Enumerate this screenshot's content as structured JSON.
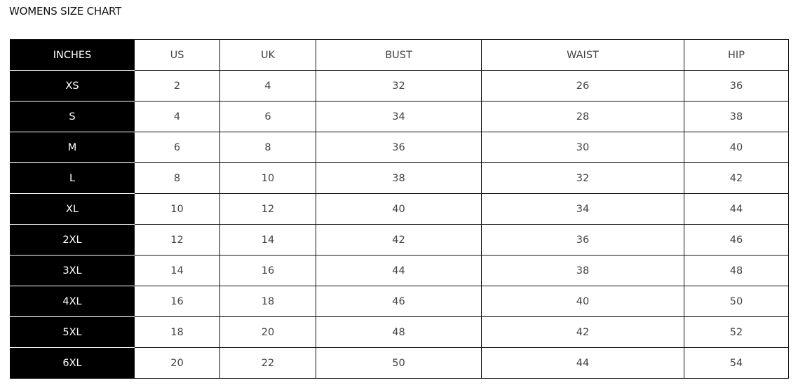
{
  "title": "WOMENS SIZE CHART",
  "table": {
    "headers": [
      "INCHES",
      "US",
      "UK",
      "BUST",
      "WAIST",
      "HIP"
    ],
    "rows": [
      [
        "XS",
        "2",
        "4",
        "32",
        "26",
        "36"
      ],
      [
        "S",
        "4",
        "6",
        "34",
        "28",
        "38"
      ],
      [
        "M",
        "6",
        "8",
        "36",
        "30",
        "40"
      ],
      [
        "L",
        "8",
        "10",
        "38",
        "32",
        "42"
      ],
      [
        "XL",
        "10",
        "12",
        "40",
        "34",
        "44"
      ],
      [
        "2XL",
        "12",
        "14",
        "42",
        "36",
        "46"
      ],
      [
        "3XL",
        "14",
        "16",
        "44",
        "38",
        "48"
      ],
      [
        "4XL",
        "16",
        "18",
        "46",
        "40",
        "50"
      ],
      [
        "5XL",
        "18",
        "20",
        "48",
        "42",
        "52"
      ],
      [
        "6XL",
        "20",
        "22",
        "50",
        "44",
        "54"
      ]
    ]
  }
}
